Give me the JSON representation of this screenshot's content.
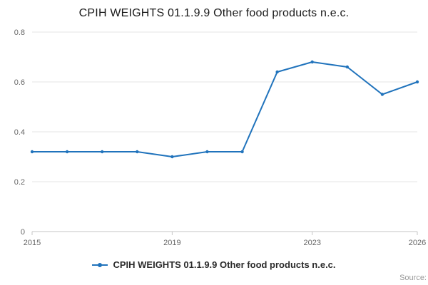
{
  "chart_data": {
    "type": "line",
    "title": "CPIH WEIGHTS 01.1.9.9 Other food products n.e.c.",
    "series": [
      {
        "name": "CPIH WEIGHTS 01.1.9.9 Other food products n.e.c.",
        "x": [
          2015,
          2016,
          2017,
          2018,
          2019,
          2020,
          2021,
          2022,
          2023,
          2024,
          2025,
          2026
        ],
        "values": [
          0.32,
          0.32,
          0.32,
          0.32,
          0.3,
          0.32,
          0.32,
          0.64,
          0.68,
          0.66,
          0.55,
          0.6
        ]
      }
    ],
    "xlabel": "",
    "ylabel": "",
    "xlim": [
      2015,
      2026
    ],
    "ylim": [
      0,
      0.8
    ],
    "x_ticks": [
      2015,
      2019,
      2023,
      2026
    ],
    "y_ticks": [
      0,
      0.2,
      0.4,
      0.6,
      0.8
    ],
    "grid": "horizontal",
    "legend_position": "bottom",
    "line_color": "#2073bc",
    "grid_color": "#e6e6e6",
    "axis_color": "#c6c6c6",
    "tick_label_color": "#666666"
  },
  "legend": {
    "label": "CPIH WEIGHTS 01.1.9.9 Other food products n.e.c."
  },
  "source": {
    "label": "Source:"
  }
}
